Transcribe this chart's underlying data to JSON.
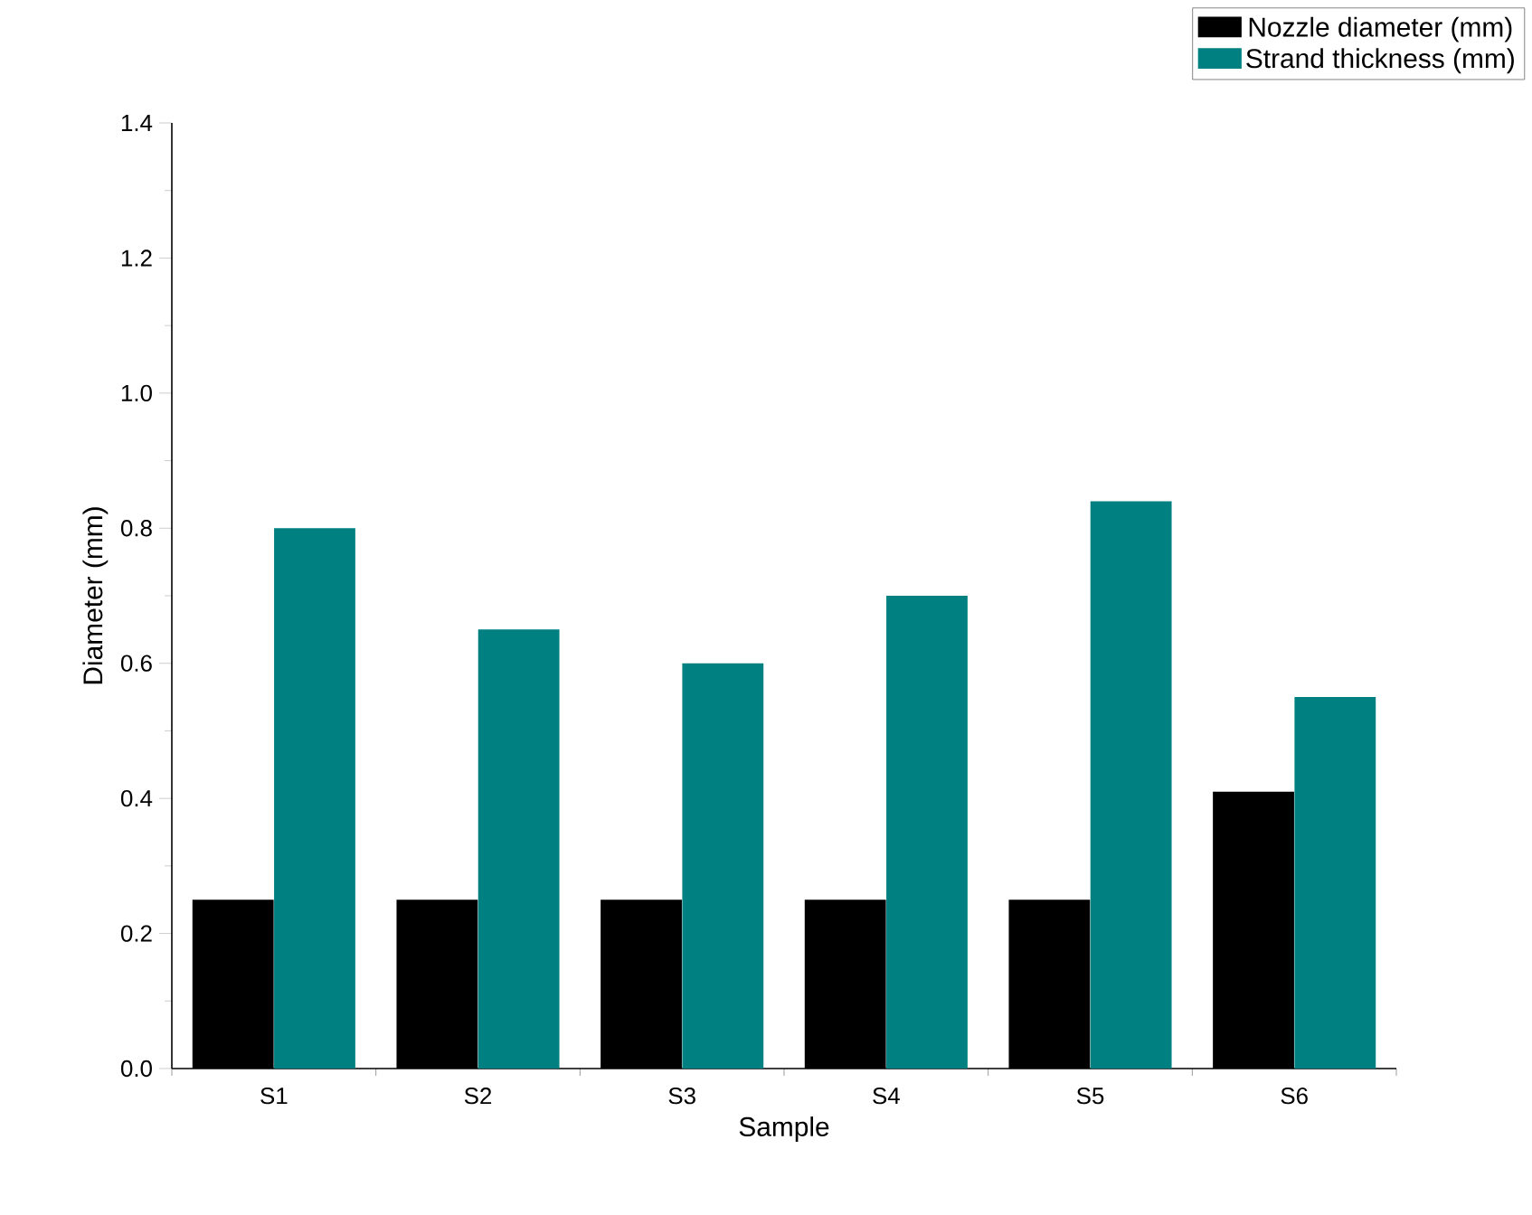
{
  "chart_data": {
    "type": "bar",
    "xlabel": "Sample",
    "ylabel": "Diameter (mm)",
    "categories": [
      "S1",
      "S2",
      "S3",
      "S4",
      "S5",
      "S6"
    ],
    "series": [
      {
        "name": "Nozzle diameter (mm)",
        "color": "#000000",
        "values": [
          0.25,
          0.25,
          0.25,
          0.25,
          0.25,
          0.41
        ]
      },
      {
        "name": "Strand thickness (mm)",
        "color": "#008080",
        "values": [
          0.8,
          0.65,
          0.6,
          0.7,
          0.84,
          0.55
        ]
      }
    ],
    "ylim": [
      0,
      1.4
    ],
    "yticks": [
      {
        "value": 0,
        "label": "0.0"
      },
      0.2,
      0.4,
      0.6,
      0.8,
      {
        "value": 1,
        "label": "1.0"
      },
      1.2,
      1.4
    ],
    "legend": "top right",
    "grid": false
  }
}
